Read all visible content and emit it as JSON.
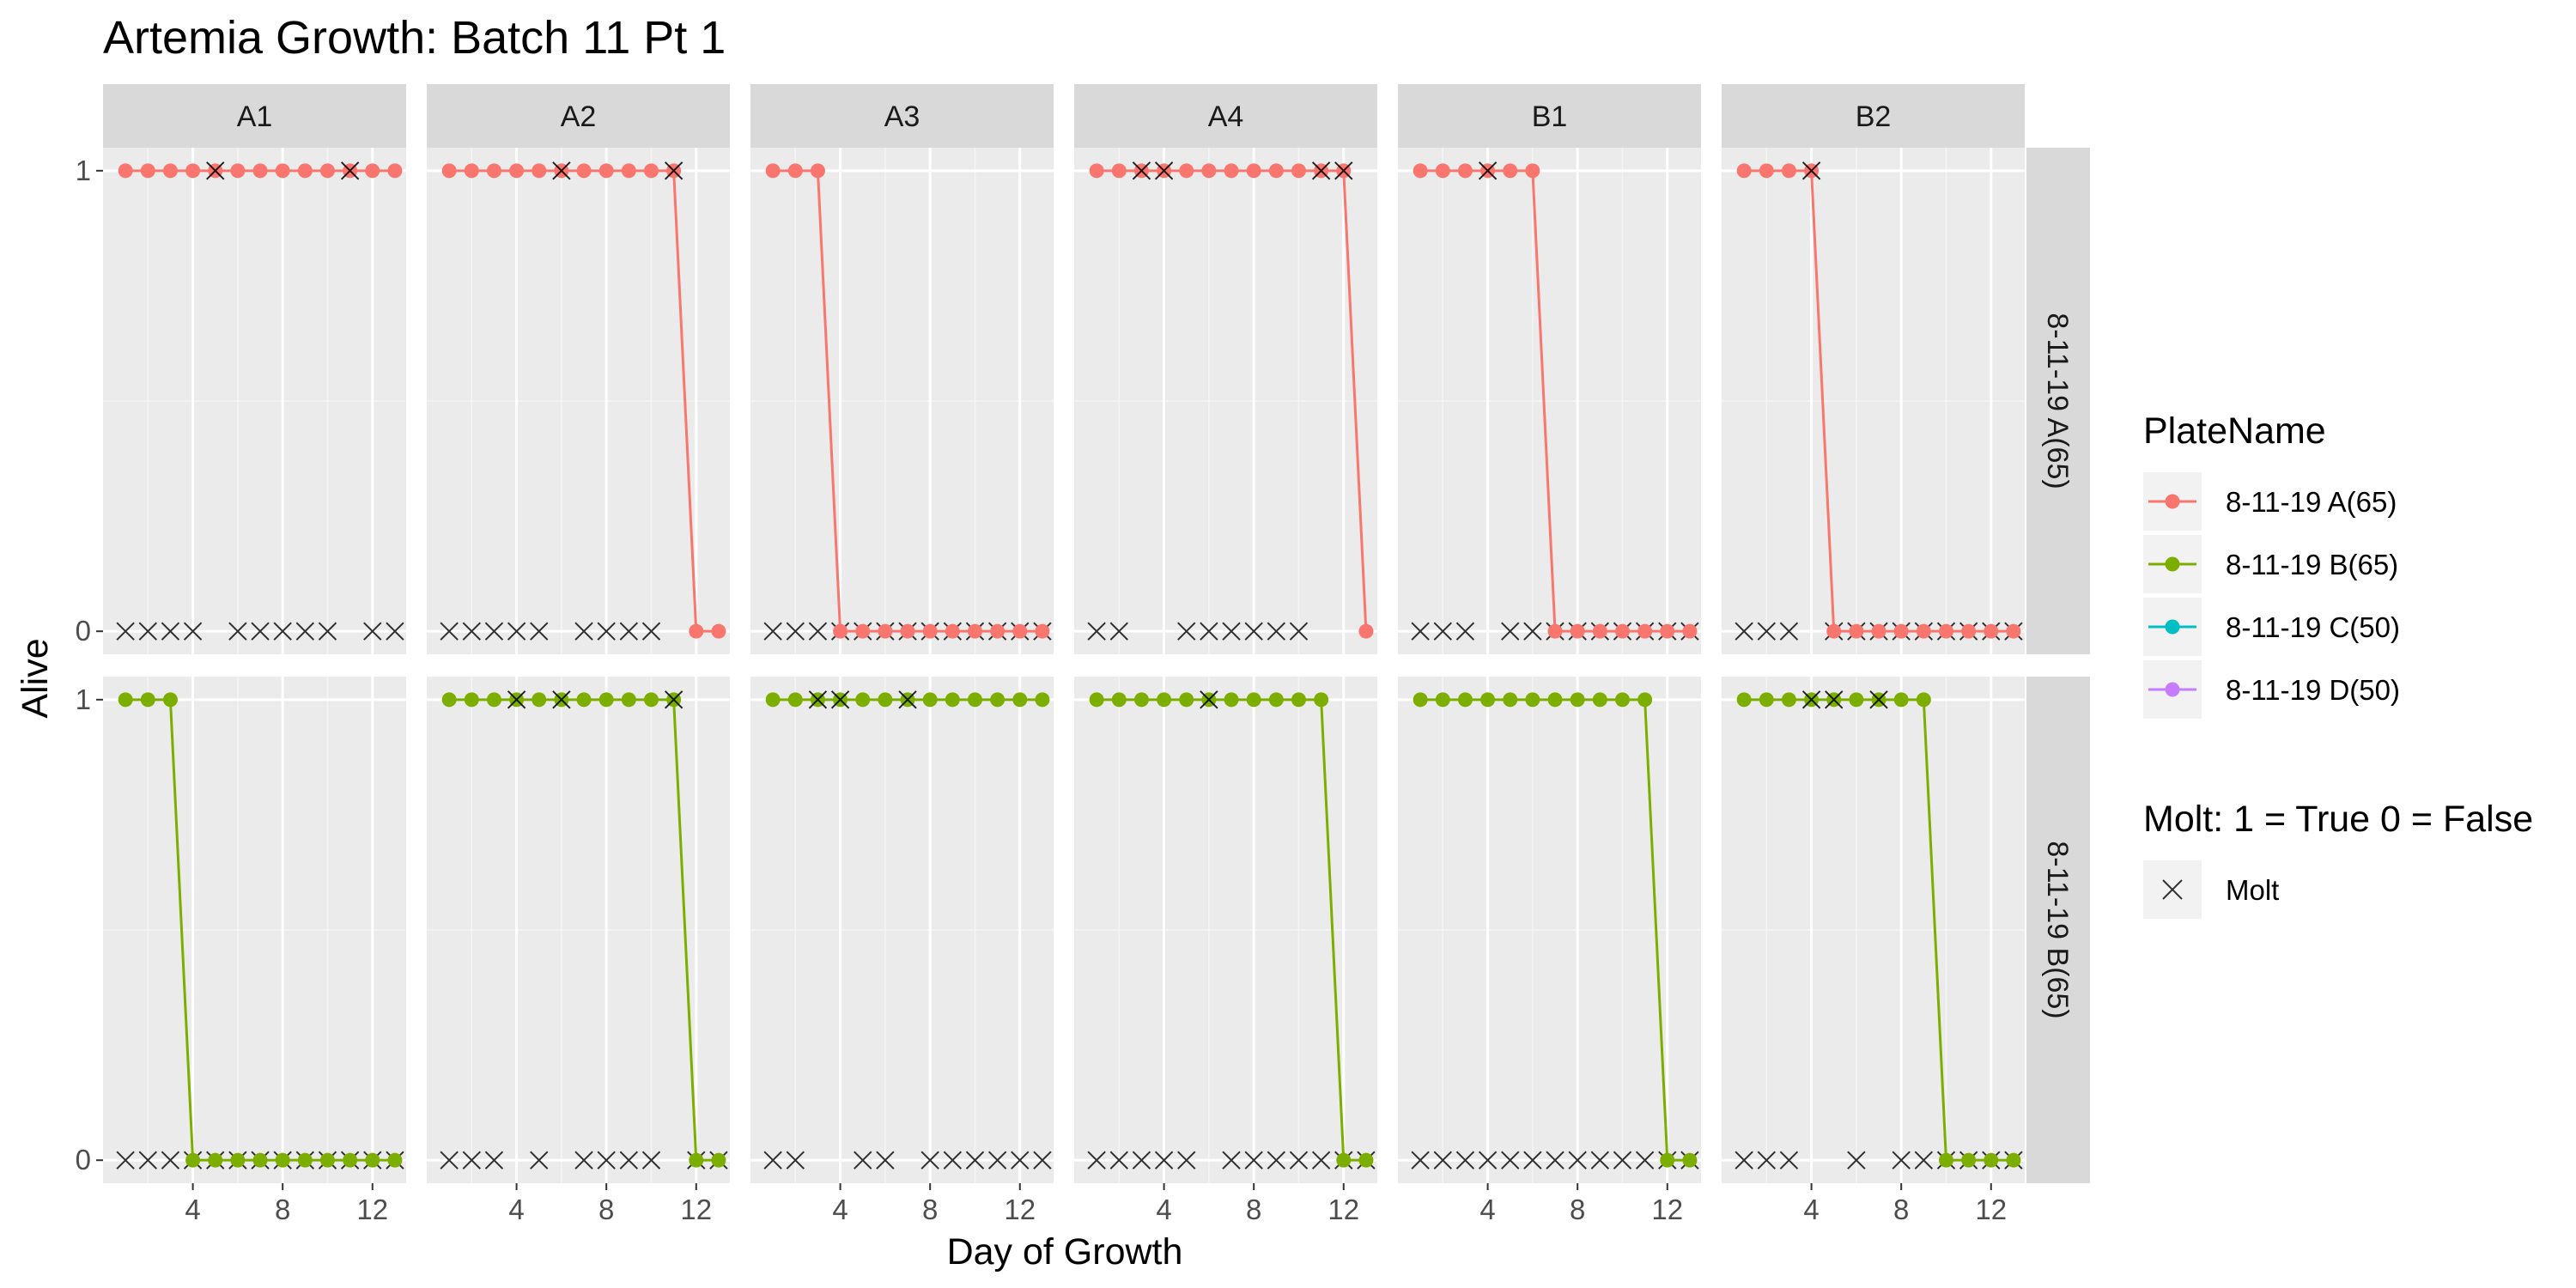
{
  "chart_data": {
    "type": "line",
    "title": "Artemia Growth: Batch 11 Pt 1",
    "xlabel": "Day of Growth",
    "ylabel": "Alive",
    "x_ticks": [
      4,
      8,
      12
    ],
    "x_range": [
      0,
      13.5
    ],
    "y_ticks": [
      0,
      1
    ],
    "y_range": [
      -0.05,
      1.05
    ],
    "facet_columns": [
      "A1",
      "A2",
      "A3",
      "A4",
      "B1",
      "B2"
    ],
    "facet_rows": [
      "8-11-19 A(65)",
      "8-11-19 B(65)"
    ],
    "days": [
      1,
      2,
      3,
      4,
      5,
      6,
      7,
      8,
      9,
      10,
      11,
      12,
      13
    ],
    "legend_color": {
      "title": "PlateName",
      "items": [
        {
          "label": "8-11-19 A(65)",
          "color": "#F8766D"
        },
        {
          "label": "8-11-19 B(65)",
          "color": "#7CAE00"
        },
        {
          "label": "8-11-19 C(50)",
          "color": "#00BFC4"
        },
        {
          "label": "8-11-19 D(50)",
          "color": "#C77CFF"
        }
      ]
    },
    "legend_shape": {
      "title": "Molt: 1 = True 0 = False",
      "items": [
        {
          "label": "Molt",
          "symbol": "×"
        }
      ]
    },
    "panels": [
      {
        "row": 0,
        "col": 0,
        "color": "#F8766D",
        "alive": [
          1,
          1,
          1,
          1,
          1,
          1,
          1,
          1,
          1,
          1,
          1,
          1,
          1
        ],
        "molt_alive_days": [
          5,
          11
        ],
        "molt_zero_days": [
          1,
          2,
          3,
          4,
          6,
          7,
          8,
          9,
          10,
          12,
          13
        ]
      },
      {
        "row": 0,
        "col": 1,
        "color": "#F8766D",
        "alive": [
          1,
          1,
          1,
          1,
          1,
          1,
          1,
          1,
          1,
          1,
          1,
          0,
          0
        ],
        "molt_alive_days": [
          6,
          11
        ],
        "molt_zero_days": [
          1,
          2,
          3,
          4,
          5,
          7,
          8,
          9,
          10
        ]
      },
      {
        "row": 0,
        "col": 2,
        "color": "#F8766D",
        "alive": [
          1,
          1,
          1,
          0,
          0,
          0,
          0,
          0,
          0,
          0,
          0,
          0,
          0
        ],
        "molt_alive_days": [],
        "molt_zero_days": [
          1,
          2,
          3,
          4,
          5,
          6,
          7,
          8,
          9,
          10,
          11,
          12,
          13
        ]
      },
      {
        "row": 0,
        "col": 3,
        "color": "#F8766D",
        "alive": [
          1,
          1,
          1,
          1,
          1,
          1,
          1,
          1,
          1,
          1,
          1,
          1,
          0
        ],
        "molt_alive_days": [
          3,
          4,
          11,
          12
        ],
        "molt_zero_days": [
          1,
          2,
          5,
          6,
          7,
          8,
          9,
          10
        ]
      },
      {
        "row": 0,
        "col": 4,
        "color": "#F8766D",
        "alive": [
          1,
          1,
          1,
          1,
          1,
          1,
          0,
          0,
          0,
          0,
          0,
          0,
          0
        ],
        "molt_alive_days": [
          4
        ],
        "molt_zero_days": [
          1,
          2,
          3,
          5,
          6,
          7,
          8,
          9,
          10,
          11,
          12,
          13
        ]
      },
      {
        "row": 0,
        "col": 5,
        "color": "#F8766D",
        "alive": [
          1,
          1,
          1,
          1,
          0,
          0,
          0,
          0,
          0,
          0,
          0,
          0,
          0
        ],
        "molt_alive_days": [
          4
        ],
        "molt_zero_days": [
          1,
          2,
          3,
          5,
          6,
          7,
          8,
          9,
          10,
          11,
          12,
          13
        ]
      },
      {
        "row": 1,
        "col": 0,
        "color": "#7CAE00",
        "alive": [
          1,
          1,
          1,
          0,
          0,
          0,
          0,
          0,
          0,
          0,
          0,
          0,
          0
        ],
        "molt_alive_days": [],
        "molt_zero_days": [
          1,
          2,
          3,
          4,
          5,
          6,
          7,
          8,
          9,
          10,
          11,
          12,
          13
        ]
      },
      {
        "row": 1,
        "col": 1,
        "color": "#7CAE00",
        "alive": [
          1,
          1,
          1,
          1,
          1,
          1,
          1,
          1,
          1,
          1,
          1,
          0,
          0
        ],
        "molt_alive_days": [
          4,
          6,
          11
        ],
        "molt_zero_days": [
          1,
          2,
          3,
          5,
          7,
          8,
          9,
          10,
          12,
          13
        ]
      },
      {
        "row": 1,
        "col": 2,
        "color": "#7CAE00",
        "alive": [
          1,
          1,
          1,
          1,
          1,
          1,
          1,
          1,
          1,
          1,
          1,
          1,
          1
        ],
        "molt_alive_days": [
          3,
          4,
          7
        ],
        "molt_zero_days": [
          1,
          2,
          5,
          6,
          8,
          9,
          10,
          11,
          12,
          13
        ]
      },
      {
        "row": 1,
        "col": 3,
        "color": "#7CAE00",
        "alive": [
          1,
          1,
          1,
          1,
          1,
          1,
          1,
          1,
          1,
          1,
          1,
          0,
          0
        ],
        "molt_alive_days": [
          6
        ],
        "molt_zero_days": [
          1,
          2,
          3,
          4,
          5,
          7,
          8,
          9,
          10,
          11,
          12,
          13
        ]
      },
      {
        "row": 1,
        "col": 4,
        "color": "#7CAE00",
        "alive": [
          1,
          1,
          1,
          1,
          1,
          1,
          1,
          1,
          1,
          1,
          1,
          0,
          0
        ],
        "molt_alive_days": [],
        "molt_zero_days": [
          1,
          2,
          3,
          4,
          5,
          6,
          7,
          8,
          9,
          10,
          11,
          12,
          13
        ]
      },
      {
        "row": 1,
        "col": 5,
        "color": "#7CAE00",
        "alive": [
          1,
          1,
          1,
          1,
          1,
          1,
          1,
          1,
          1,
          0,
          0,
          0,
          0
        ],
        "molt_alive_days": [
          4,
          5,
          7
        ],
        "molt_zero_days": [
          1,
          2,
          3,
          6,
          8,
          9,
          10,
          11,
          12,
          13
        ]
      }
    ]
  }
}
